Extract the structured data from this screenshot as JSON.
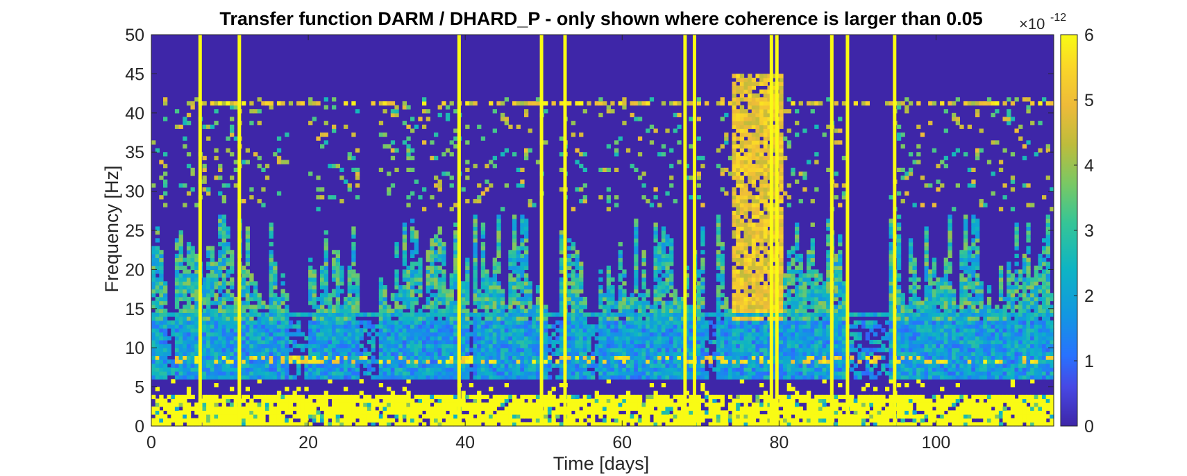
{
  "chart_data": {
    "type": "heatmap",
    "title": "Transfer function DARM / DHARD_P - only shown where coherence is larger than 0.05",
    "xlabel": "Time [days]",
    "ylabel": "Frequency [Hz]",
    "xlim": [
      0,
      115
    ],
    "ylim": [
      0,
      50
    ],
    "x_ticks": [
      0,
      20,
      40,
      60,
      80,
      100
    ],
    "y_ticks": [
      0,
      5,
      10,
      15,
      20,
      25,
      30,
      35,
      40,
      45,
      50
    ],
    "colorbar": {
      "colormap": "parula",
      "clim": [
        0,
        6
      ],
      "ticks": [
        0,
        1,
        2,
        3,
        4,
        5,
        6
      ],
      "exponent_label": "×10",
      "exponent_power": "-12"
    },
    "grid": false,
    "background_color": "#3e26a8",
    "approx_regions_description_values": {
      "low_band_0_to_4Hz": "mostly saturated (≈6e-12) with gaps",
      "band_6_to_13Hz": "moderate values ≈1–3e-12",
      "band_14_to_25Hz": "≈1.5–4e-12 in active periods",
      "days_74_to_80_above_15Hz": "≈4.5–5.5e-12",
      "line_14Hz_and_41Hz": "persistent features across time"
    }
  }
}
